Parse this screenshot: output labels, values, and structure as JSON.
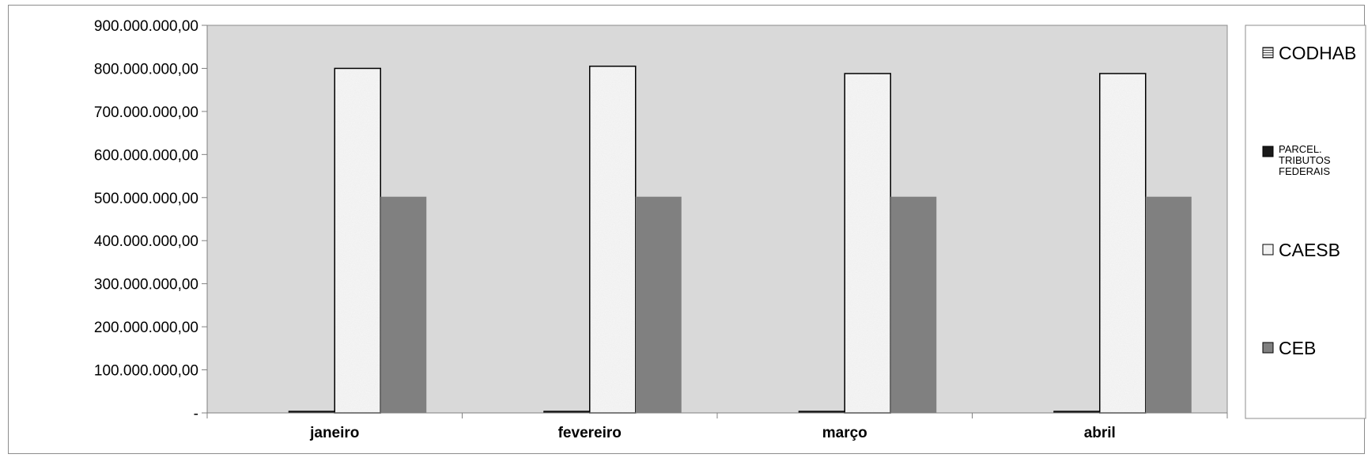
{
  "chart_data": {
    "type": "bar",
    "categories": [
      "janeiro",
      "fevereiro",
      "março",
      "abril"
    ],
    "series": [
      {
        "name": "CODHAB",
        "values": [
          0,
          0,
          0,
          0
        ],
        "fill": "hatch",
        "color": "#808080"
      },
      {
        "name": "PARCEL. TRIBUTOS FEDERAIS",
        "values": [
          4000000,
          4000000,
          4000000,
          4000000
        ],
        "fill": "solid",
        "color": "#1a1a1a"
      },
      {
        "name": "CAESB",
        "values": [
          800000000,
          805000000,
          788000000,
          788000000
        ],
        "fill": "speckle",
        "color": "#f0f0f0"
      },
      {
        "name": "CEB",
        "values": [
          502000000,
          502000000,
          502000000,
          502000000
        ],
        "fill": "solid",
        "color": "#808080"
      }
    ],
    "yticks": [
      "-",
      "100.000.000,00",
      "200.000.000,00",
      "300.000.000,00",
      "400.000.000,00",
      "500.000.000,00",
      "600.000.000,00",
      "700.000.000,00",
      "800.000.000,00",
      "900.000.000,00"
    ],
    "ylim": [
      0,
      900000000
    ],
    "title": "",
    "xlabel": "",
    "ylabel": "",
    "grid": false,
    "legend_position": "right",
    "plot_background": "#d9d9d9"
  }
}
